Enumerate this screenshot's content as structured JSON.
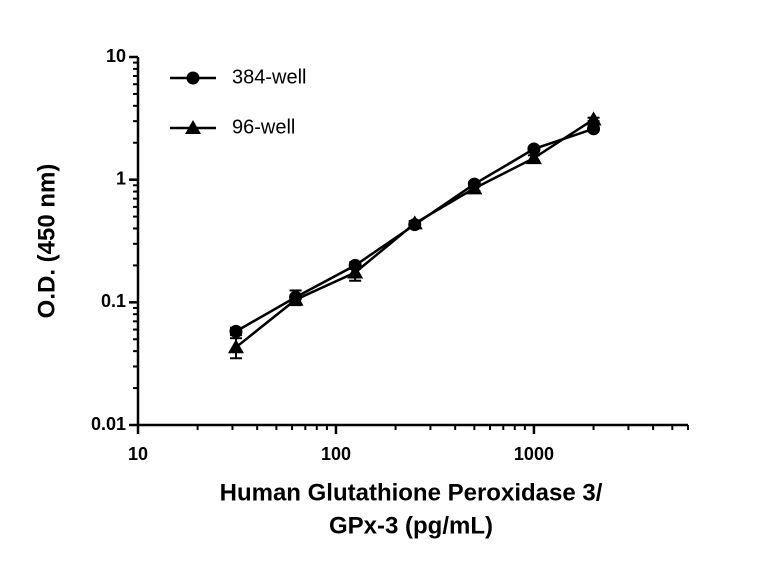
{
  "chart_data": {
    "type": "line",
    "xlabel": [
      "Human Glutathione Peroxidase 3/",
      "GPx-3 (pg/mL)"
    ],
    "ylabel": "O.D. (450 nm)",
    "x": [
      31.25,
      62.5,
      125,
      250,
      500,
      1000,
      2000
    ],
    "series": [
      {
        "name": "384-well",
        "color": "#000000",
        "marker": "circle",
        "values": [
          0.058,
          0.11,
          0.2,
          0.43,
          0.92,
          1.78,
          2.6
        ],
        "errors": [
          0.004,
          0.015,
          0.012,
          0.02,
          0.04,
          0.08,
          0.1
        ]
      },
      {
        "name": "96-well",
        "color": "#000000",
        "marker": "triangle",
        "values": [
          0.043,
          0.105,
          0.175,
          0.44,
          0.85,
          1.5,
          3.1
        ],
        "errors": [
          0.008,
          0.01,
          0.025,
          0.02,
          0.04,
          0.08,
          0.1
        ]
      }
    ],
    "xscale": "log",
    "yscale": "log",
    "xlim": [
      10,
      6000
    ],
    "ylim": [
      0.01,
      10
    ],
    "xticks": [
      10,
      100,
      1000
    ],
    "yticks": [
      0.01,
      0.1,
      1,
      10
    ],
    "minor_ticks": true,
    "grid": false,
    "legend": "upper left"
  }
}
